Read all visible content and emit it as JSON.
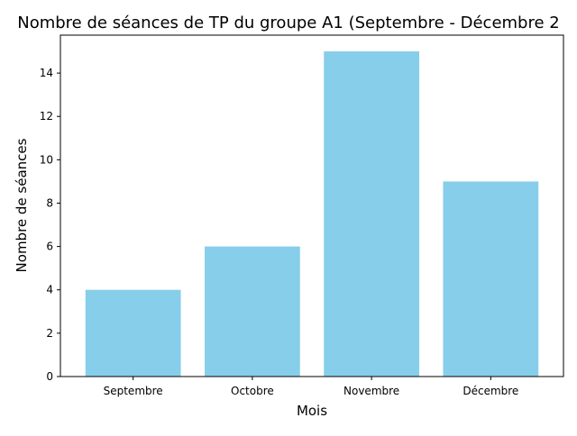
{
  "chart_data": {
    "type": "bar",
    "title": "Nombre de séances de TP du groupe A1 (Septembre - Décembre 2",
    "xlabel": "Mois",
    "ylabel": "Nombre de séances",
    "categories": [
      "Septembre",
      "Octobre",
      "Novembre",
      "Décembre"
    ],
    "values": [
      4,
      6,
      15,
      9
    ],
    "ylim": [
      0,
      15.75
    ],
    "yticks": [
      0,
      2,
      4,
      6,
      8,
      10,
      12,
      14
    ],
    "bar_color": "#87ceeb",
    "grid": false,
    "legend": false
  }
}
